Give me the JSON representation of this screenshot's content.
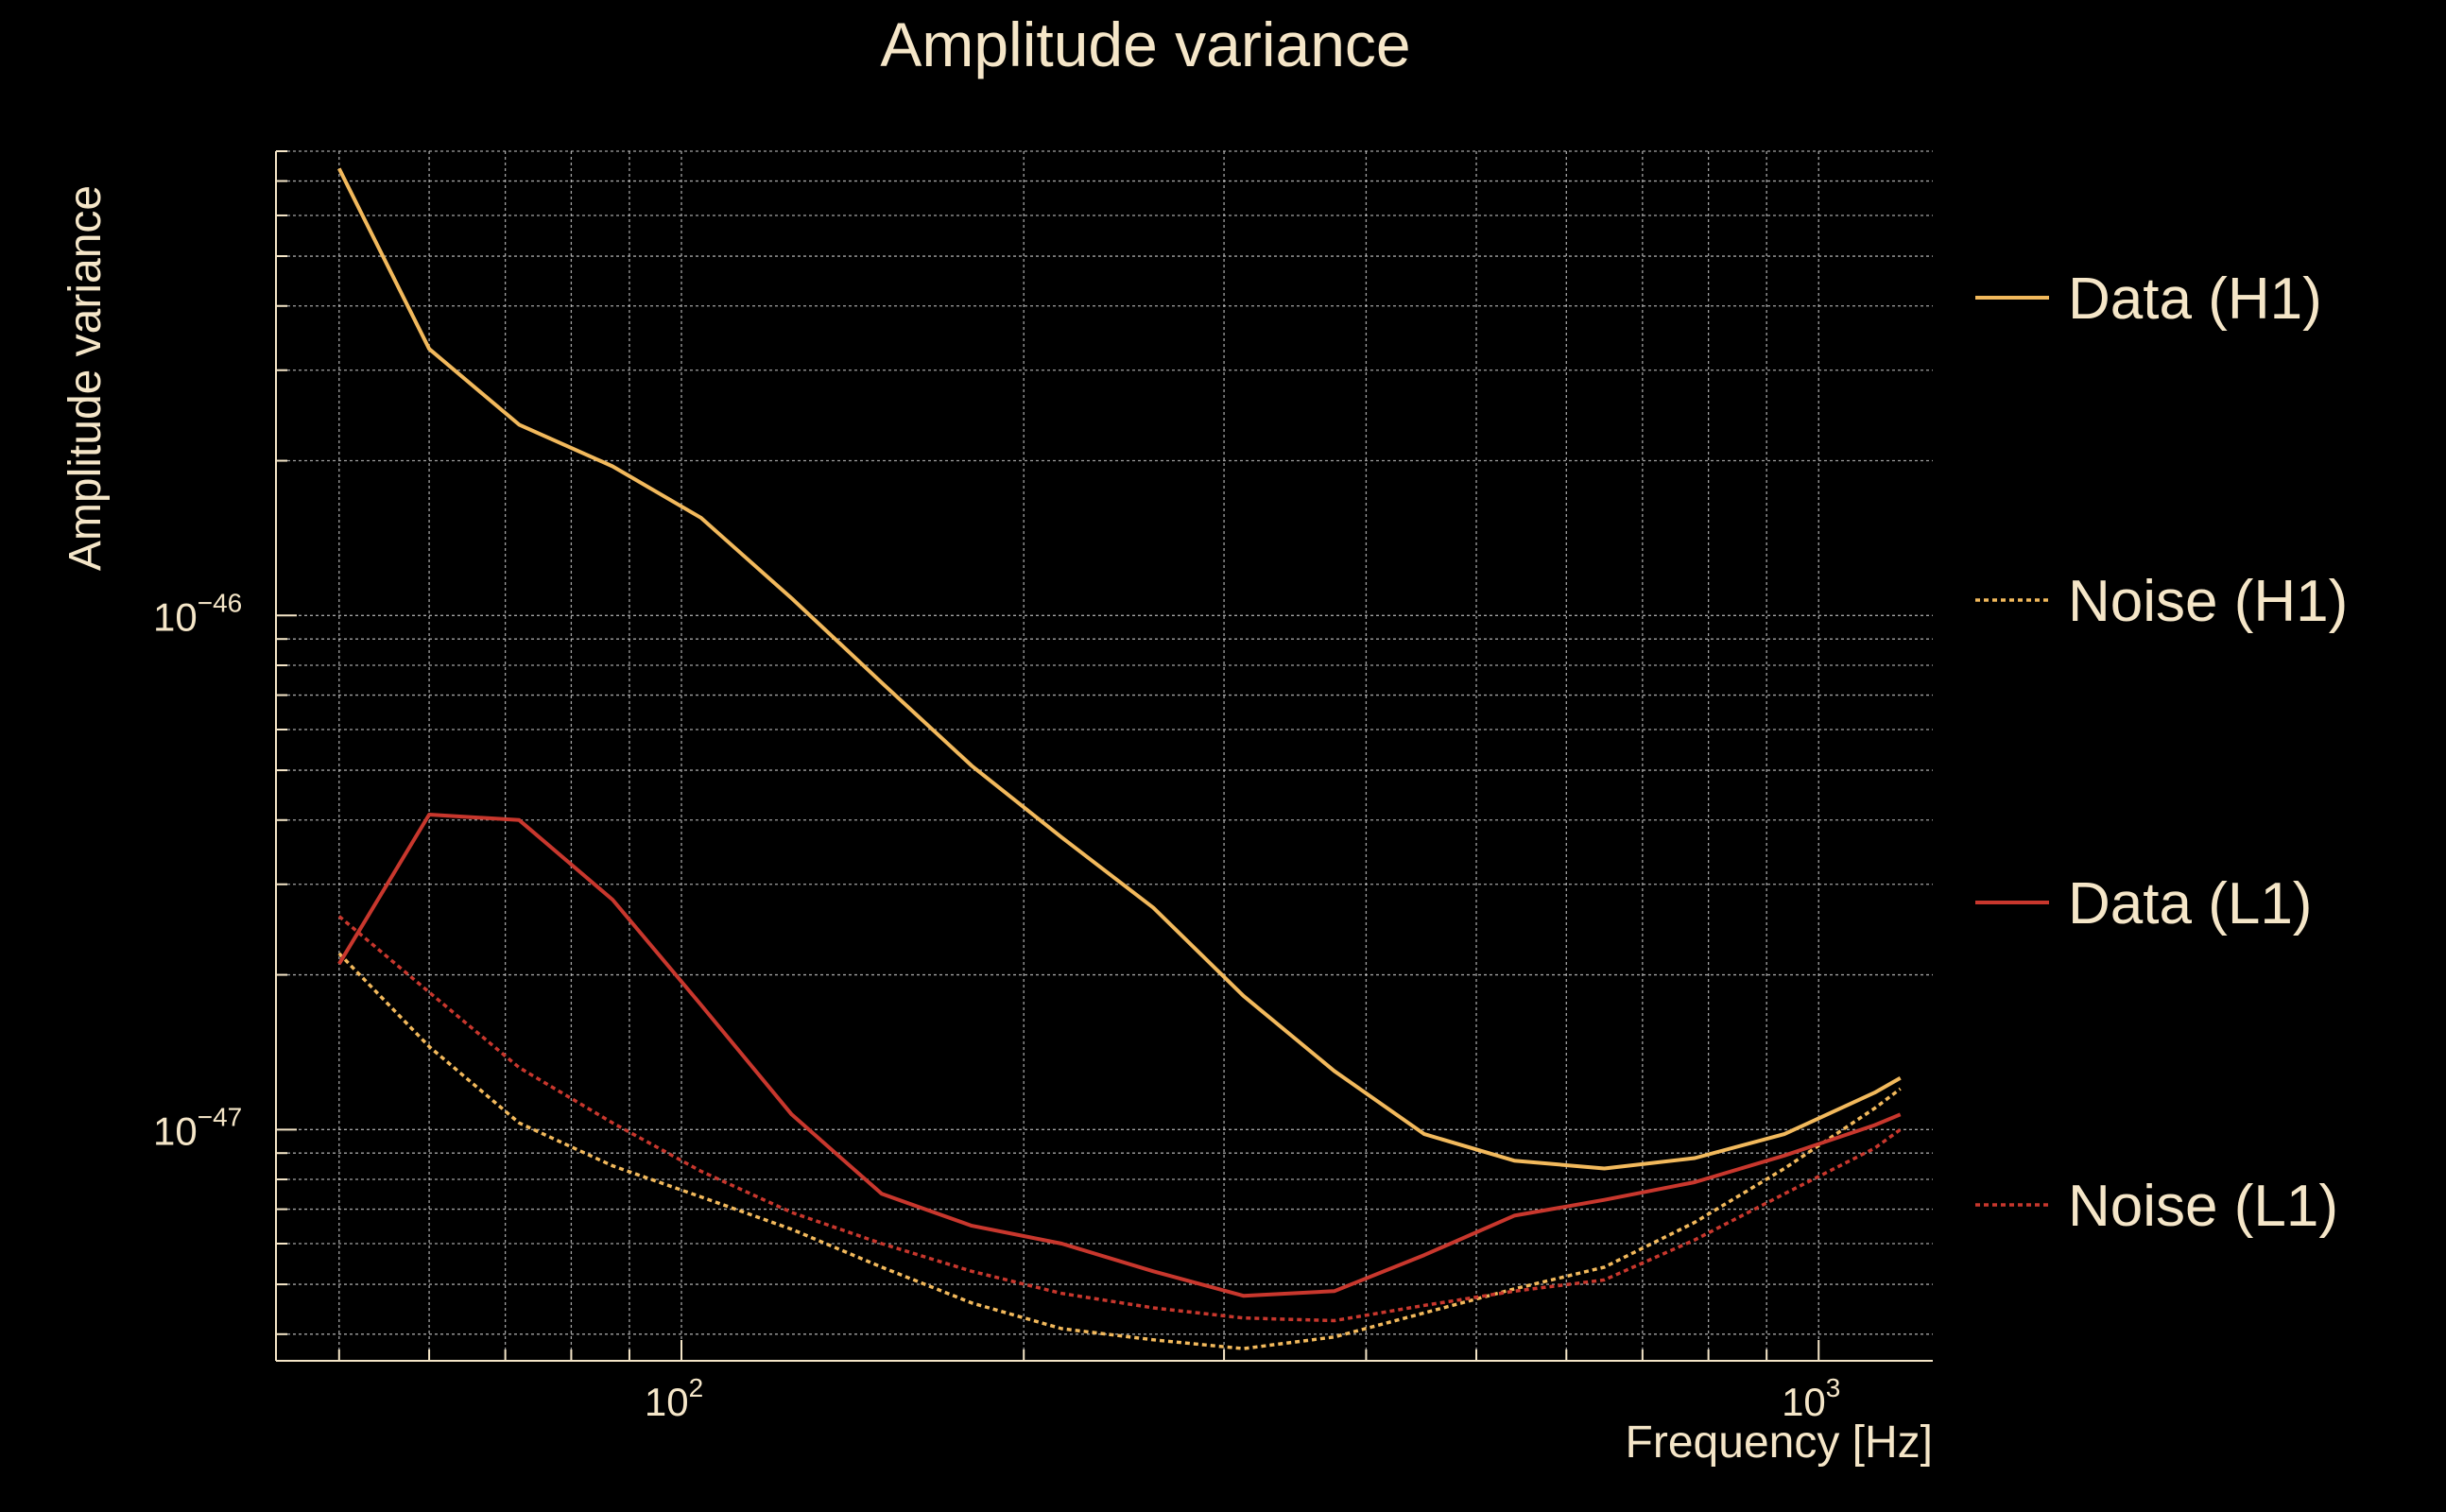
{
  "colors": {
    "background": "#000000",
    "text": "#F5E6C8",
    "h1": "#F2B95C",
    "l1": "#C8372D"
  },
  "chart_data": {
    "type": "line",
    "title": "Amplitude variance",
    "xlabel": "Frequency [Hz]",
    "ylabel": "Amplitude variance",
    "xscale": "log",
    "yscale": "log",
    "xlim": [
      44,
      1260
    ],
    "ylim": [
      3.55e-48,
      8e-46
    ],
    "grid": true,
    "legend_placement": "right",
    "x_ticks": [
      {
        "value": 100,
        "base": "10",
        "exp": "2"
      },
      {
        "value": 1000,
        "base": "10",
        "exp": "3"
      }
    ],
    "y_ticks": [
      {
        "value": 1e-46,
        "base": "10",
        "exp": "−46"
      },
      {
        "value": 1e-47,
        "base": "10",
        "exp": "−47"
      }
    ],
    "x": [
      50,
      60,
      72,
      87,
      104,
      125,
      150,
      180,
      216,
      260,
      312,
      375,
      450,
      540,
      648,
      778,
      933,
      1120,
      1180
    ],
    "series": [
      {
        "name": "Data (H1)",
        "color": "#F2B95C",
        "dash": "solid",
        "values": [
          7.4e-46,
          3.3e-46,
          2.35e-46,
          1.95e-46,
          1.55e-46,
          1.08e-46,
          7.4e-47,
          5.1e-47,
          3.7e-47,
          2.7e-47,
          1.82e-47,
          1.3e-47,
          9.8e-48,
          8.7e-48,
          8.4e-48,
          8.8e-48,
          9.8e-48,
          1.18e-47,
          1.26e-47
        ]
      },
      {
        "name": "Noise (H1)",
        "color": "#F2B95C",
        "dash": "dotted",
        "values": [
          2.2e-47,
          1.45e-47,
          1.03e-47,
          8.5e-48,
          7.4e-48,
          6.4e-48,
          5.4e-48,
          4.6e-48,
          4.1e-48,
          3.9e-48,
          3.75e-48,
          3.95e-48,
          4.4e-48,
          4.9e-48,
          5.4e-48,
          6.6e-48,
          8.4e-48,
          1.1e-47,
          1.2e-47
        ]
      },
      {
        "name": "Data (L1)",
        "color": "#C8372D",
        "dash": "solid",
        "values": [
          2.1e-47,
          4.1e-47,
          4e-47,
          2.8e-47,
          1.75e-47,
          1.07e-47,
          7.5e-48,
          6.5e-48,
          6e-48,
          5.3e-48,
          4.75e-48,
          4.85e-48,
          5.7e-48,
          6.8e-48,
          7.3e-48,
          7.9e-48,
          8.9e-48,
          1.02e-47,
          1.07e-47
        ]
      },
      {
        "name": "Noise (L1)",
        "color": "#C8372D",
        "dash": "dotted",
        "values": [
          2.6e-47,
          1.85e-47,
          1.32e-47,
          1.03e-47,
          8.3e-48,
          6.9e-48,
          6e-48,
          5.3e-48,
          4.8e-48,
          4.5e-48,
          4.3e-48,
          4.25e-48,
          4.55e-48,
          4.85e-48,
          5.1e-48,
          6.1e-48,
          7.5e-48,
          9.2e-48,
          1e-47
        ]
      }
    ]
  }
}
